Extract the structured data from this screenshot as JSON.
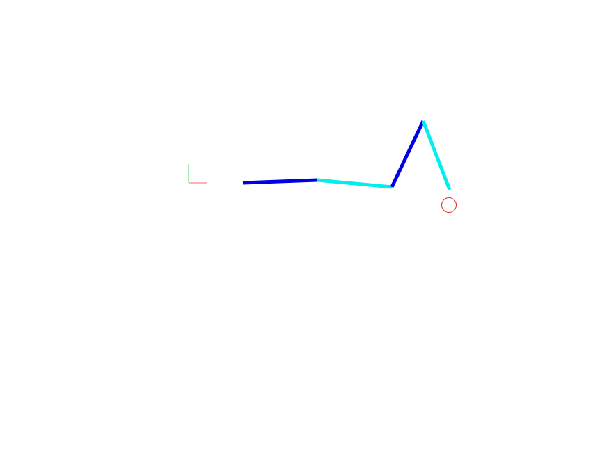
{
  "colors": {
    "background": "#ffffff",
    "axis_x": "#ff6666",
    "axis_y": "#66cc66",
    "link_dark": "#0000e6",
    "link_light": "#00eeee",
    "target": "#dd2222"
  },
  "scene": {
    "type": "planar robot arm",
    "link_count": 4,
    "link_color_pattern": [
      "link_dark",
      "link_light",
      "link_dark",
      "link_light"
    ],
    "has_target_marker": true,
    "has_origin_axes": true
  }
}
